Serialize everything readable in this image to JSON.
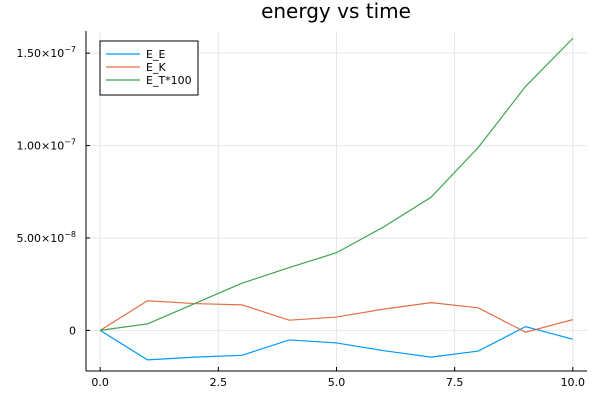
{
  "chart_data": {
    "type": "line",
    "title": "energy vs time",
    "xlabel": "",
    "ylabel": "",
    "xlim": [
      -0.3,
      10.3
    ],
    "ylim": [
      -2.2e-08,
      1.62e-07
    ],
    "x_ticks": [
      0.0,
      2.5,
      5.0,
      7.5,
      10.0
    ],
    "x_tick_labels": [
      "0.0",
      "2.5",
      "5.0",
      "7.5",
      "10.0"
    ],
    "y_ticks": [
      0,
      5e-08,
      1e-07,
      1.5e-07
    ],
    "y_tick_labels": [
      {
        "mantissa": "0",
        "exp": ""
      },
      {
        "mantissa": "5.00×10",
        "exp": "−8"
      },
      {
        "mantissa": "1.00×10",
        "exp": "−7"
      },
      {
        "mantissa": "1.50×10",
        "exp": "−7"
      }
    ],
    "grid": true,
    "legend_position": "top-left",
    "x": [
      0,
      1,
      2,
      3,
      4,
      5,
      6,
      7,
      8,
      9,
      10
    ],
    "series": [
      {
        "name": "E_E",
        "color": "#009af9",
        "values": [
          0,
          -1.6e-08,
          -1.45e-08,
          -1.35e-08,
          -5.2e-09,
          -6.8e-09,
          -1.1e-08,
          -1.45e-08,
          -1.12e-08,
          2e-09,
          -4.8e-09
        ]
      },
      {
        "name": "E_K",
        "color": "#e26f46",
        "values": [
          0,
          1.6e-08,
          1.45e-08,
          1.38e-08,
          5.5e-09,
          7.2e-09,
          1.15e-08,
          1.5e-08,
          1.22e-08,
          -1e-09,
          5.8e-09
        ]
      },
      {
        "name": "E_T*100",
        "color": "#3da44d",
        "values": [
          0,
          3.5e-09,
          1.45e-08,
          2.55e-08,
          3.4e-08,
          4.2e-08,
          5.6e-08,
          7.2e-08,
          9.9e-08,
          1.32e-07,
          1.58e-07
        ]
      }
    ]
  }
}
